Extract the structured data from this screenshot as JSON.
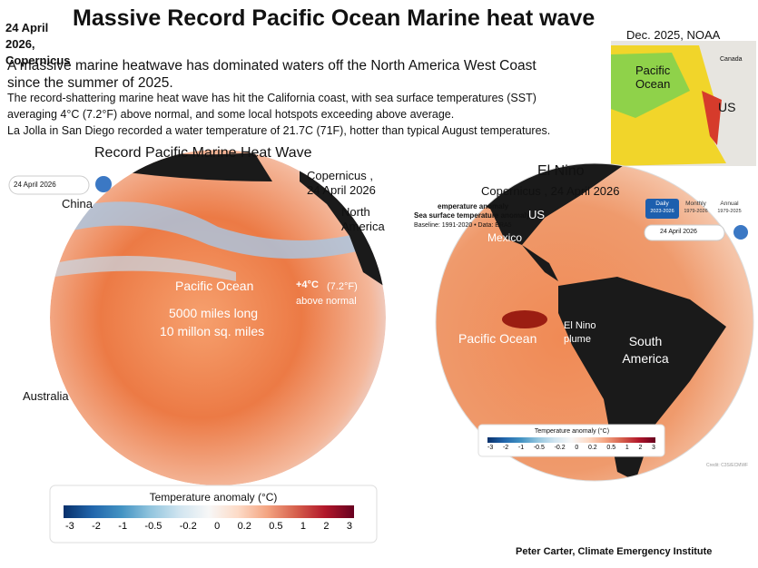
{
  "header": {
    "title": "Massive Record Pacific Ocean Marine heat wave",
    "date": "24 April 2026, Copernicus"
  },
  "intro": {
    "lead": "A massive marine heatwave has dominated waters off the North America West Coast since the summer of 2025.",
    "details": [
      "The record-shattering marine heat wave has hit the California coast, with sea surface temperatures (SST)",
      "averaging  4°C (7.2°F) above normal, and some local hotspots exceeding  above average.",
      "La Jolla in San Diego recorded a water temperature of  21.7C (71F), hotter than typical August temperatures."
    ]
  },
  "inset_map": {
    "caption": "Dec. 2025, NOAA",
    "ocean": "Pacific Ocean",
    "canada": "Canada",
    "us": "US"
  },
  "left_panel": {
    "title": "Record Pacific Marine Heat Wave",
    "source": "Copernicus , 24 April 2026",
    "date_picker": "24 April 2026",
    "china": "China",
    "north_america": "North America",
    "ocean": "Pacific Ocean",
    "anomaly": "+4°C",
    "anomaly_detail": "(7.2°F) above normal",
    "length": "5000 miles long",
    "area": "10 millon sq. miles",
    "australia": "Australia",
    "legend": {
      "title": "Temperature anomaly (°C)",
      "ticks": [
        "-3",
        "-2",
        "-1",
        "-0.5",
        "-0.2",
        "0",
        "0.2",
        "0.5",
        "1",
        "2",
        "3"
      ]
    }
  },
  "right_panel": {
    "title": "El Nino",
    "source": "Copernicus , 24 April 2026",
    "header_fragment": "emperature anomaly",
    "subtitle": "Sea surface temperature anomaly",
    "baseline": "Baseline: 1991-2020 • Data: ERA5",
    "tabs": [
      {
        "label": "Daily",
        "range": "2023-2026"
      },
      {
        "label": "Monthly",
        "range": "1979-2026"
      },
      {
        "label": "Annual",
        "range": "1979-2025"
      }
    ],
    "date_picker": "24 April 2026",
    "us": "US",
    "mexico": "Mexico",
    "ocean": "Pacific Ocean",
    "plume": "El Nino plume",
    "south_america": "South America",
    "legend": {
      "title": "Temperature anomaly (°C)",
      "ticks": [
        "-3",
        "-2",
        "-1",
        "-0.5",
        "-0.2",
        "0",
        "0.2",
        "0.5",
        "1",
        "2",
        "3"
      ]
    },
    "credit": "Credit: C3S/ECMWF"
  },
  "footer": "Peter Carter, Climate Emergency Institute"
}
